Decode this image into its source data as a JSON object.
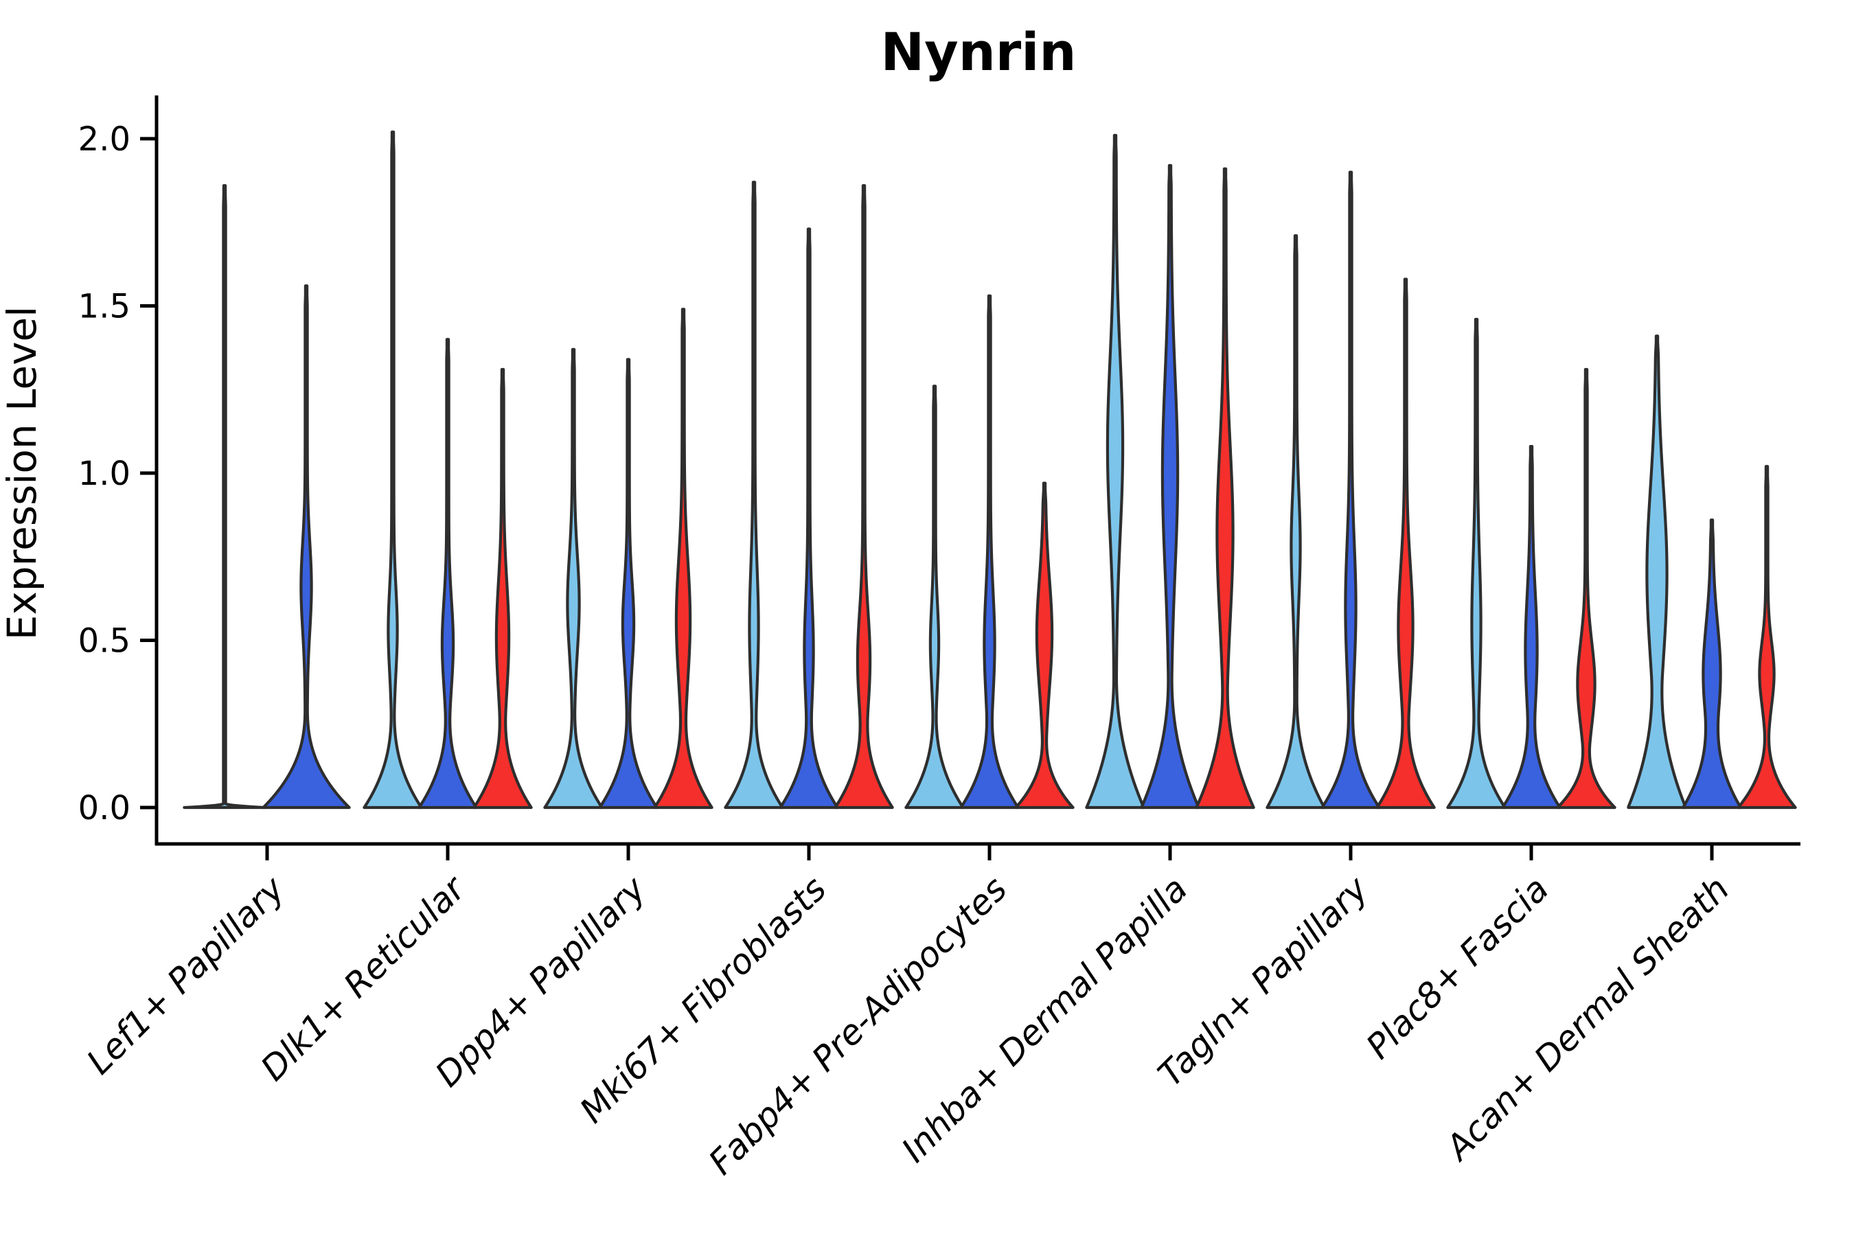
{
  "title": "Nynrin",
  "y_axis": {
    "label": "Expression Level",
    "tick_labels": [
      "0.0",
      "0.5",
      "1.0",
      "1.5",
      "2.0"
    ],
    "tick_values": [
      0,
      0.5,
      1.0,
      1.5,
      2.0
    ]
  },
  "x_axis": {
    "categories": [
      "Lef1+ Papillary",
      "Dlk1+ Reticular",
      "Dpp4+ Papillary",
      "Mki67+ Fibroblasts",
      "Fabp4+ Pre-Adipocytes",
      "Inhba+ Dermal Papilla",
      "Tagln+ Papillary",
      "Plac8+ Fascia",
      "Acan+ Dermal Sheath"
    ]
  },
  "colors": {
    "split_light_blue": "#7CC4EA",
    "split_blue": "#3A62DE",
    "split_red": "#F5302C",
    "violin_outline": "#2E2E2E",
    "axis": "#000000",
    "background": "#ffffff"
  },
  "chart_data": {
    "type": "violin",
    "title": "Nynrin",
    "xlabel": "",
    "ylabel": "Expression Level",
    "ylim": [
      -0.11,
      2.13
    ],
    "yticks": [
      0,
      0.5,
      1.0,
      1.5,
      2.0
    ],
    "grid": false,
    "legend": "none",
    "categories": [
      "Lef1+ Papillary",
      "Dlk1+ Reticular",
      "Dpp4+ Papillary",
      "Mki67+ Fibroblasts",
      "Fabp4+ Pre-Adipocytes",
      "Inhba+ Dermal Papilla",
      "Tagln+ Papillary",
      "Plac8+ Fascia",
      "Acan+ Dermal Sheath"
    ],
    "series": [
      {
        "name": "light-blue-split",
        "color": "#7CC4EA"
      },
      {
        "name": "blue-split",
        "color": "#3A62DE"
      },
      {
        "name": "red-split",
        "color": "#F5302C"
      }
    ],
    "max_expression_by_category": {
      "Lef1+ Papillary": [
        1.86,
        1.56,
        null
      ],
      "Dlk1+ Reticular": [
        2.02,
        1.4,
        1.31
      ],
      "Dpp4+ Papillary": [
        1.37,
        1.34,
        1.49
      ],
      "Mki67+ Fibroblasts": [
        1.87,
        1.73,
        1.86
      ],
      "Fabp4+ Pre-Adipocytes": [
        1.26,
        1.53,
        0.97
      ],
      "Inhba+ Dermal Papilla": [
        2.01,
        1.92,
        1.91
      ],
      "Tagln+ Papillary": [
        1.71,
        1.9,
        1.58
      ],
      "Plac8+ Fascia": [
        1.46,
        1.08,
        1.31
      ],
      "Acan+ Dermal Sheath": [
        1.41,
        0.86,
        1.02
      ]
    },
    "violins": [
      {
        "c": 0,
        "s": 0,
        "off": -62,
        "max": 1.86,
        "bulge": null,
        "bw": 0,
        "baseH": 0.012,
        "baseW": 57,
        "pow": 2.0
      },
      {
        "c": 0,
        "s": 1,
        "off": 57,
        "max": 1.56,
        "bulge": [
          0.48,
          0.66,
          0.9
        ],
        "bw": 6,
        "baseH": 0.3,
        "baseW": 61,
        "pow": 2.4
      },
      {
        "c": 1,
        "s": 0,
        "off": -80,
        "max": 2.02,
        "bulge": [
          0.34,
          0.53,
          0.74
        ],
        "bw": 5,
        "baseH": 0.3,
        "baseW": 40,
        "pow": 2.4
      },
      {
        "c": 1,
        "s": 1,
        "off": 0,
        "max": 1.4,
        "bulge": [
          0.29,
          0.49,
          0.7
        ],
        "bw": 6.5,
        "baseH": 0.3,
        "baseW": 40,
        "pow": 2.4
      },
      {
        "c": 1,
        "s": 2,
        "off": 80,
        "max": 1.31,
        "bulge": [
          0.26,
          0.51,
          0.78
        ],
        "bw": 7.5,
        "baseH": 0.3,
        "baseW": 40,
        "pow": 2.4
      },
      {
        "c": 2,
        "s": 0,
        "off": -80,
        "max": 1.37,
        "bulge": [
          0.39,
          0.61,
          0.85
        ],
        "bw": 7,
        "baseH": 0.3,
        "baseW": 40,
        "pow": 2.4
      },
      {
        "c": 2,
        "s": 1,
        "off": 0,
        "max": 1.34,
        "bulge": [
          0.37,
          0.55,
          0.77
        ],
        "bw": 6.5,
        "baseH": 0.3,
        "baseW": 40,
        "pow": 2.4
      },
      {
        "c": 2,
        "s": 2,
        "off": 80,
        "max": 1.49,
        "bulge": [
          0.3,
          0.56,
          0.87
        ],
        "bw": 8.5,
        "baseH": 0.3,
        "baseW": 40,
        "pow": 2.4
      },
      {
        "c": 3,
        "s": 0,
        "off": -80,
        "max": 1.87,
        "bulge": [
          0.27,
          0.54,
          0.83
        ],
        "bw": 5,
        "baseH": 0.3,
        "baseW": 40,
        "pow": 2.4
      },
      {
        "c": 3,
        "s": 1,
        "off": 0,
        "max": 1.73,
        "bulge": [
          0.25,
          0.47,
          0.73
        ],
        "bw": 5,
        "baseH": 0.3,
        "baseW": 40,
        "pow": 2.4
      },
      {
        "c": 3,
        "s": 2,
        "off": 80,
        "max": 1.86,
        "bulge": [
          0.2,
          0.44,
          0.67
        ],
        "bw": 7.5,
        "baseH": 0.3,
        "baseW": 40,
        "pow": 2.4
      },
      {
        "c": 4,
        "s": 0,
        "off": -80,
        "max": 1.26,
        "bulge": [
          0.29,
          0.49,
          0.66
        ],
        "bw": 4.5,
        "baseH": 0.3,
        "baseW": 40,
        "pow": 2.4
      },
      {
        "c": 4,
        "s": 1,
        "off": 0,
        "max": 1.53,
        "bulge": [
          0.25,
          0.49,
          0.75
        ],
        "bw": 6,
        "baseH": 0.3,
        "baseW": 40,
        "pow": 2.4
      },
      {
        "c": 4,
        "s": 2,
        "off": 80,
        "max": 0.97,
        "bulge": [
          0.27,
          0.52,
          0.79
        ],
        "bw": 9.5,
        "baseH": 0.22,
        "baseW": 40,
        "pow": 2.4
      },
      {
        "c": 5,
        "s": 0,
        "off": -80,
        "max": 2.01,
        "bulge": [
          0.55,
          1.08,
          1.4
        ],
        "bw": 9.5,
        "baseH": 0.4,
        "baseW": 40,
        "pow": 2.1
      },
      {
        "c": 5,
        "s": 1,
        "off": 0,
        "max": 1.92,
        "bulge": [
          0.5,
          1.0,
          1.42
        ],
        "bw": 9.5,
        "baseH": 0.4,
        "baseW": 40,
        "pow": 2.1
      },
      {
        "c": 5,
        "s": 2,
        "off": 80,
        "max": 1.91,
        "bulge": [
          0.45,
          0.82,
          1.27
        ],
        "bw": 10,
        "baseH": 0.38,
        "baseW": 40,
        "pow": 2.1
      },
      {
        "c": 6,
        "s": 0,
        "off": -80,
        "max": 1.71,
        "bulge": [
          0.58,
          0.78,
          1.08
        ],
        "bw": 5,
        "baseH": 0.33,
        "baseW": 40,
        "pow": 2.2
      },
      {
        "c": 6,
        "s": 1,
        "off": 0,
        "max": 1.9,
        "bulge": [
          0.32,
          0.6,
          0.93
        ],
        "bw": 6,
        "baseH": 0.3,
        "baseW": 40,
        "pow": 2.4
      },
      {
        "c": 6,
        "s": 2,
        "off": 80,
        "max": 1.58,
        "bulge": [
          0.28,
          0.54,
          0.85
        ],
        "bw": 9,
        "baseH": 0.3,
        "baseW": 40,
        "pow": 2.4
      },
      {
        "c": 7,
        "s": 0,
        "off": -80,
        "max": 1.46,
        "bulge": [
          0.26,
          0.55,
          0.89
        ],
        "bw": 5,
        "baseH": 0.3,
        "baseW": 40,
        "pow": 2.4
      },
      {
        "c": 7,
        "s": 1,
        "off": 0,
        "max": 1.08,
        "bulge": [
          0.22,
          0.47,
          0.77
        ],
        "bw": 7,
        "baseH": 0.3,
        "baseW": 40,
        "pow": 2.4
      },
      {
        "c": 7,
        "s": 2,
        "off": 80,
        "max": 1.31,
        "bulge": [
          0.18,
          0.37,
          0.57
        ],
        "bw": 11,
        "baseH": 0.2,
        "baseW": 40,
        "pow": 2.4
      },
      {
        "c": 8,
        "s": 0,
        "off": -80,
        "max": 1.41,
        "bulge": [
          0.3,
          0.7,
          1.12
        ],
        "bw": 13,
        "baseH": 0.4,
        "baseW": 40,
        "pow": 2.0
      },
      {
        "c": 8,
        "s": 1,
        "off": 0,
        "max": 0.86,
        "bulge": [
          0.15,
          0.4,
          0.63
        ],
        "bw": 11,
        "baseH": 0.3,
        "baseW": 40,
        "pow": 2.2
      },
      {
        "c": 8,
        "s": 2,
        "off": 80,
        "max": 1.02,
        "bulge": [
          0.25,
          0.4,
          0.55
        ],
        "bw": 9,
        "baseH": 0.24,
        "baseW": 40,
        "pow": 2.4
      }
    ]
  }
}
